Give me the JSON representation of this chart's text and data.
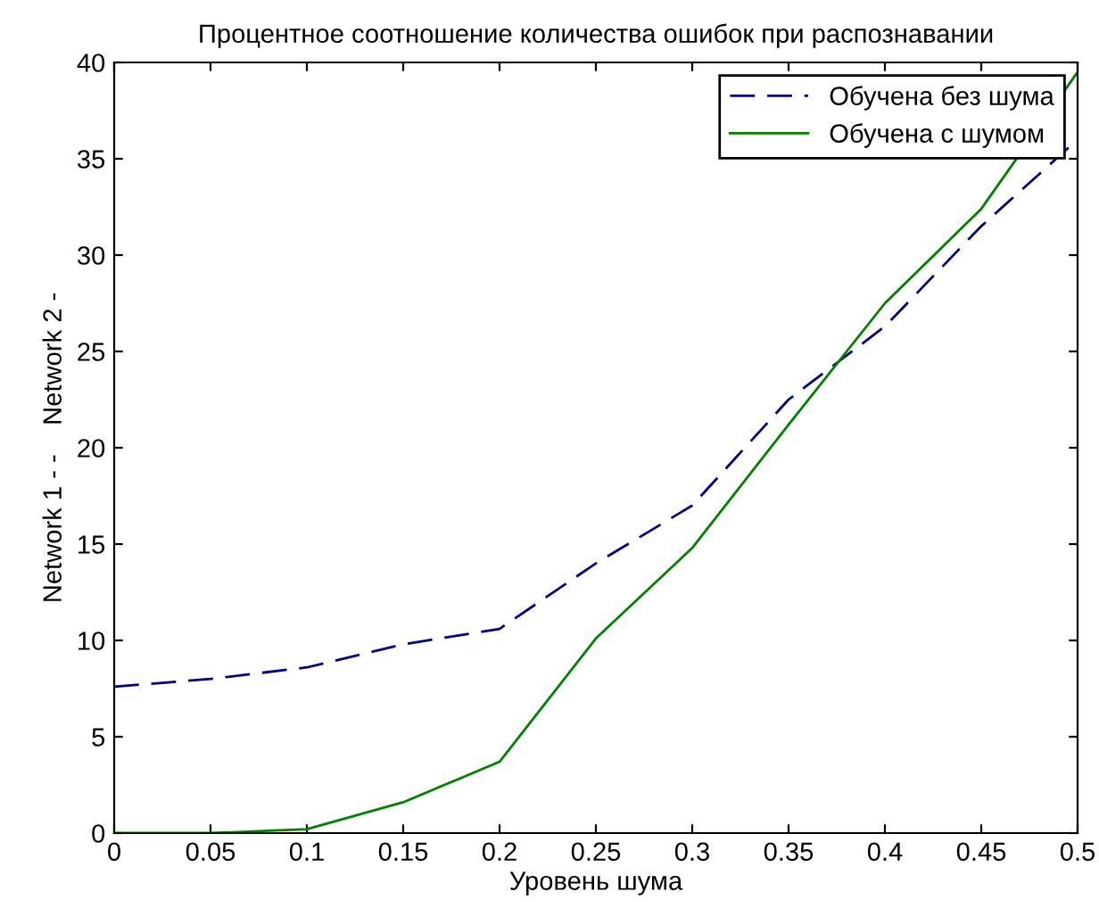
{
  "chart_data": {
    "type": "line",
    "title": "Процентное соотношение количества ошибок при распознавании",
    "xlabel": "Уровень шума",
    "ylabel": "Network 1 - -    Network 2 -",
    "x": [
      0,
      0.05,
      0.1,
      0.15,
      0.2,
      0.25,
      0.3,
      0.35,
      0.4,
      0.45,
      0.5
    ],
    "series": [
      {
        "name": "Обучена без шума",
        "color": "#000080",
        "line_style": "dashed",
        "values": [
          7.6,
          8.0,
          8.6,
          9.8,
          10.6,
          14.0,
          17.0,
          22.5,
          26.3,
          31.5,
          36.0
        ]
      },
      {
        "name": "Обучена с шумом",
        "color": "#008000",
        "line_style": "solid",
        "values": [
          0,
          0,
          0.2,
          1.6,
          3.7,
          10.1,
          14.8,
          21.2,
          27.5,
          32.4,
          39.5
        ]
      }
    ],
    "xlim": [
      0,
      0.5
    ],
    "ylim": [
      0,
      40
    ],
    "xticks": [
      0,
      0.05,
      0.1,
      0.15,
      0.2,
      0.25,
      0.3,
      0.35,
      0.4,
      0.45,
      0.5
    ],
    "yticks": [
      0,
      5,
      10,
      15,
      20,
      25,
      30,
      35,
      40
    ],
    "grid": false,
    "legend": "top right",
    "marker": "none"
  }
}
